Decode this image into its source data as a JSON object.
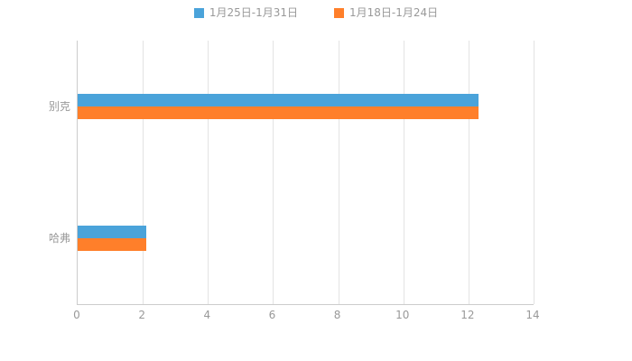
{
  "chart_data": {
    "type": "bar",
    "orientation": "horizontal",
    "title": "",
    "categories": [
      "别克",
      "哈弗"
    ],
    "series": [
      {
        "name": "1月25日-1月31日",
        "color": "#4aa3da",
        "values": [
          12.3,
          2.1
        ]
      },
      {
        "name": "1月18日-1月24日",
        "color": "#ff7f2a",
        "values": [
          12.3,
          2.1
        ]
      }
    ],
    "xlabel": "",
    "ylabel": "",
    "xlim": [
      0,
      14
    ],
    "xticks": [
      0,
      2,
      4,
      6,
      8,
      10,
      12,
      14
    ],
    "grid": true,
    "legend_position": "top",
    "colors": {
      "axis_line": "#cccccc",
      "grid_line": "#e3e3e3",
      "text": "#999999",
      "background": "#ffffff"
    }
  }
}
